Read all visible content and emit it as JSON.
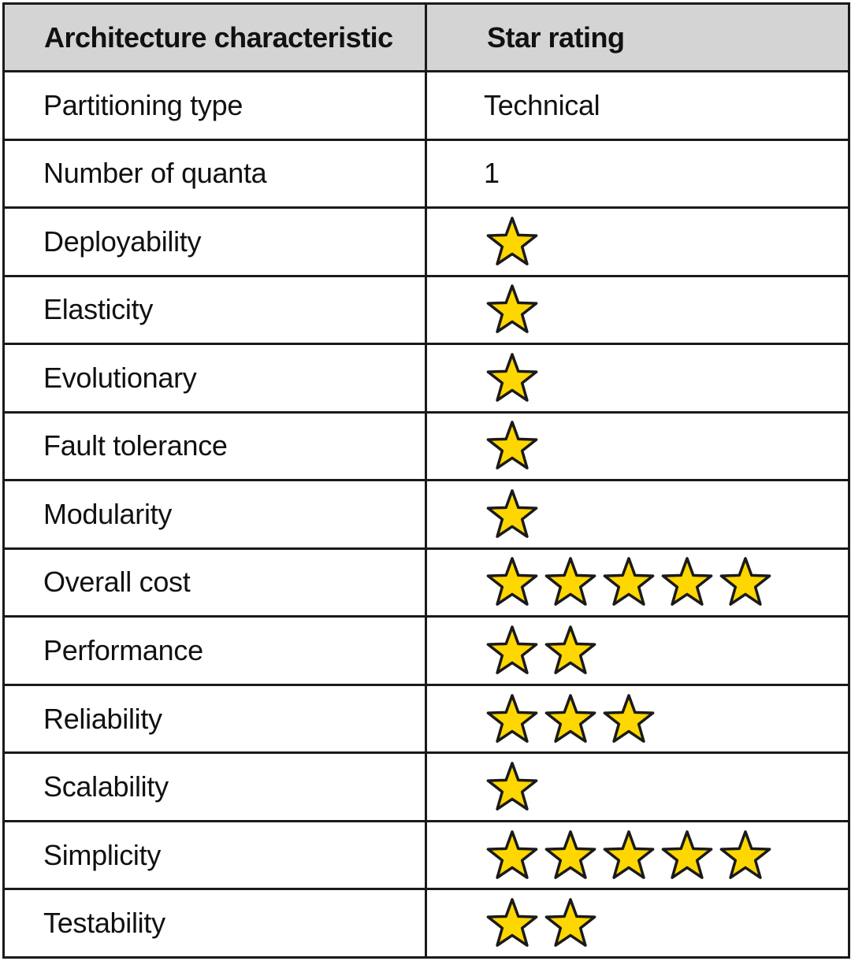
{
  "table": {
    "headers": [
      "Architecture characteristic",
      "Star rating"
    ],
    "star_color": "#FFD700",
    "star_outline_color": "#1A1A1A",
    "header_background": "#D4D4D4",
    "rows": [
      {
        "name": "Partitioning type",
        "text": "Technical"
      },
      {
        "name": "Number of quanta",
        "text": "1"
      },
      {
        "name": "Deployability",
        "stars": 1
      },
      {
        "name": "Elasticity",
        "stars": 1
      },
      {
        "name": "Evolutionary",
        "stars": 1
      },
      {
        "name": "Fault tolerance",
        "stars": 1
      },
      {
        "name": "Modularity",
        "stars": 1
      },
      {
        "name": "Overall cost",
        "stars": 5
      },
      {
        "name": "Performance",
        "stars": 2
      },
      {
        "name": "Reliability",
        "stars": 3
      },
      {
        "name": "Scalability",
        "stars": 1
      },
      {
        "name": "Simplicity",
        "stars": 5
      },
      {
        "name": "Testability",
        "stars": 2
      }
    ]
  }
}
